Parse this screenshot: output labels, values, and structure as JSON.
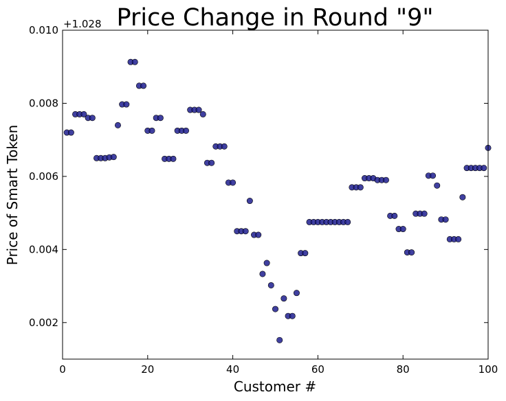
{
  "chart_data": {
    "type": "scatter",
    "title": "Price Change in Round \"9\"",
    "xlabel": "Customer #",
    "ylabel": "Price of Smart Token",
    "y_offset_label": "+1.028",
    "xlim": [
      0,
      100
    ],
    "ylim": [
      0.001,
      0.01
    ],
    "x_ticks": [
      0,
      20,
      40,
      60,
      80,
      100
    ],
    "y_ticks": [
      0.002,
      0.004,
      0.006,
      0.008,
      0.01
    ],
    "x_tick_labels": [
      "0",
      "20",
      "40",
      "60",
      "80",
      "100"
    ],
    "y_tick_labels": [
      "0.002",
      "0.004",
      "0.006",
      "0.008",
      "0.010"
    ],
    "grid": false,
    "marker_color": "#1f1f8f",
    "points": [
      [
        1,
        0.0072
      ],
      [
        2,
        0.0072
      ],
      [
        3,
        0.0077
      ],
      [
        4,
        0.0077
      ],
      [
        5,
        0.0077
      ],
      [
        6,
        0.0076
      ],
      [
        7,
        0.0076
      ],
      [
        8,
        0.0065
      ],
      [
        9,
        0.0065
      ],
      [
        10,
        0.0065
      ],
      [
        11,
        0.00652
      ],
      [
        12,
        0.00653
      ],
      [
        13,
        0.0074
      ],
      [
        14,
        0.00797
      ],
      [
        15,
        0.00797
      ],
      [
        16,
        0.00913
      ],
      [
        17,
        0.00913
      ],
      [
        18,
        0.00848
      ],
      [
        19,
        0.00848
      ],
      [
        20,
        0.00725
      ],
      [
        21,
        0.00725
      ],
      [
        22,
        0.0076
      ],
      [
        23,
        0.0076
      ],
      [
        24,
        0.00648
      ],
      [
        25,
        0.00648
      ],
      [
        26,
        0.00648
      ],
      [
        27,
        0.00725
      ],
      [
        28,
        0.00725
      ],
      [
        29,
        0.00725
      ],
      [
        30,
        0.00782
      ],
      [
        31,
        0.00782
      ],
      [
        32,
        0.00782
      ],
      [
        33,
        0.0077
      ],
      [
        34,
        0.00637
      ],
      [
        35,
        0.00637
      ],
      [
        36,
        0.00682
      ],
      [
        37,
        0.00682
      ],
      [
        38,
        0.00682
      ],
      [
        39,
        0.00583
      ],
      [
        40,
        0.00583
      ],
      [
        41,
        0.0045
      ],
      [
        42,
        0.0045
      ],
      [
        43,
        0.0045
      ],
      [
        44,
        0.00533
      ],
      [
        45,
        0.0044
      ],
      [
        46,
        0.0044
      ],
      [
        47,
        0.00333
      ],
      [
        48,
        0.00363
      ],
      [
        49,
        0.00302
      ],
      [
        50,
        0.00237
      ],
      [
        51,
        0.00152
      ],
      [
        52,
        0.00266
      ],
      [
        53,
        0.00218
      ],
      [
        54,
        0.00218
      ],
      [
        55,
        0.00281
      ],
      [
        56,
        0.0039
      ],
      [
        57,
        0.0039
      ],
      [
        58,
        0.00475
      ],
      [
        59,
        0.00475
      ],
      [
        60,
        0.00475
      ],
      [
        61,
        0.00475
      ],
      [
        62,
        0.00475
      ],
      [
        63,
        0.00475
      ],
      [
        64,
        0.00475
      ],
      [
        65,
        0.00475
      ],
      [
        66,
        0.00475
      ],
      [
        67,
        0.00475
      ],
      [
        68,
        0.0057
      ],
      [
        69,
        0.0057
      ],
      [
        70,
        0.0057
      ],
      [
        71,
        0.00595
      ],
      [
        72,
        0.00595
      ],
      [
        73,
        0.00595
      ],
      [
        74,
        0.0059
      ],
      [
        75,
        0.0059
      ],
      [
        76,
        0.0059
      ],
      [
        77,
        0.00492
      ],
      [
        78,
        0.00492
      ],
      [
        79,
        0.00456
      ],
      [
        80,
        0.00456
      ],
      [
        81,
        0.00392
      ],
      [
        82,
        0.00392
      ],
      [
        83,
        0.00498
      ],
      [
        84,
        0.00498
      ],
      [
        85,
        0.00498
      ],
      [
        86,
        0.00602
      ],
      [
        87,
        0.00602
      ],
      [
        88,
        0.00575
      ],
      [
        89,
        0.00482
      ],
      [
        90,
        0.00482
      ],
      [
        91,
        0.00428
      ],
      [
        92,
        0.00428
      ],
      [
        93,
        0.00428
      ],
      [
        94,
        0.00543
      ],
      [
        95,
        0.00623
      ],
      [
        96,
        0.00623
      ],
      [
        97,
        0.00623
      ],
      [
        98,
        0.00623
      ],
      [
        99,
        0.00623
      ],
      [
        100,
        0.00678
      ]
    ]
  }
}
